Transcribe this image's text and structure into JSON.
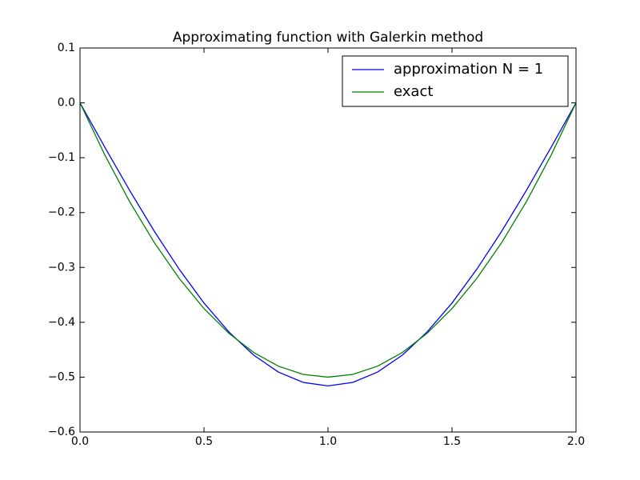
{
  "chart_data": {
    "type": "line",
    "title": "Approximating function with Galerkin method",
    "x": [
      0,
      0.1,
      0.2,
      0.3,
      0.4,
      0.5,
      0.6,
      0.7,
      0.8,
      0.9,
      1.0,
      1.1,
      1.2,
      1.3,
      1.4,
      1.5,
      1.6,
      1.7,
      1.8,
      1.9,
      2.0
    ],
    "series": [
      {
        "name": "approximation N = 1",
        "color": "#0000ff",
        "values": [
          0,
          -0.0807,
          -0.1595,
          -0.2343,
          -0.3033,
          -0.3649,
          -0.4175,
          -0.4598,
          -0.4907,
          -0.5096,
          -0.516,
          -0.5096,
          -0.4907,
          -0.4598,
          -0.4175,
          -0.3649,
          -0.3033,
          -0.2343,
          -0.1595,
          -0.0807,
          0
        ]
      },
      {
        "name": "exact",
        "color": "#008000",
        "values": [
          0,
          -0.095,
          -0.18,
          -0.255,
          -0.32,
          -0.375,
          -0.42,
          -0.455,
          -0.48,
          -0.495,
          -0.5,
          -0.495,
          -0.48,
          -0.455,
          -0.42,
          -0.375,
          -0.32,
          -0.255,
          -0.18,
          -0.095,
          0
        ]
      }
    ],
    "xlim": [
      0,
      2
    ],
    "ylim": [
      -0.6,
      0.1
    ],
    "xticks": [
      {
        "value": 0,
        "label": "0.0"
      },
      0.5,
      {
        "value": 1,
        "label": "1.0"
      },
      1.5,
      {
        "value": 2,
        "label": "2.0"
      }
    ],
    "yticks": [
      {
        "value": -0.6,
        "label": "−0.6"
      },
      {
        "value": -0.5,
        "label": "−0.5"
      },
      {
        "value": -0.4,
        "label": "−0.4"
      },
      {
        "value": -0.3,
        "label": "−0.3"
      },
      {
        "value": -0.2,
        "label": "−0.2"
      },
      {
        "value": -0.1,
        "label": "−0.1"
      },
      {
        "value": 0,
        "label": "0.0"
      },
      0.1
    ],
    "legend": "upper right",
    "grid": false
  }
}
